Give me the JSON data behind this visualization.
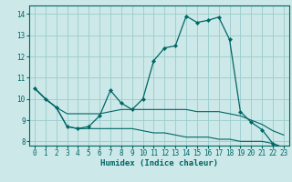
{
  "xlabel": "Humidex (Indice chaleur)",
  "bg_color": "#cce8e8",
  "grid_color": "#99cccc",
  "line_color": "#006666",
  "xlim": [
    -0.5,
    23.5
  ],
  "ylim": [
    7.8,
    14.4
  ],
  "xticks": [
    0,
    1,
    2,
    3,
    4,
    5,
    6,
    7,
    8,
    9,
    10,
    11,
    12,
    13,
    14,
    15,
    16,
    17,
    18,
    19,
    20,
    21,
    22,
    23
  ],
  "yticks": [
    8,
    9,
    10,
    11,
    12,
    13,
    14
  ],
  "series": [
    {
      "x": [
        0,
        1,
        2,
        3,
        4,
        5,
        6,
        7,
        8,
        9,
        10,
        11,
        12,
        13,
        14,
        15,
        16,
        17,
        18,
        19,
        20,
        21,
        22,
        23
      ],
      "y": [
        10.5,
        10.0,
        9.6,
        8.7,
        8.6,
        8.7,
        9.2,
        10.4,
        9.8,
        9.5,
        10.0,
        11.8,
        12.4,
        12.5,
        13.9,
        13.6,
        13.7,
        13.85,
        12.8,
        9.4,
        8.9,
        8.55,
        7.9,
        7.7
      ],
      "marker": true
    },
    {
      "x": [
        0,
        1,
        2,
        3,
        4,
        5,
        6,
        7,
        8,
        9,
        10,
        11,
        12,
        13,
        14,
        15,
        16,
        17,
        18,
        19,
        20,
        21,
        22,
        23
      ],
      "y": [
        10.5,
        10.0,
        9.6,
        9.3,
        9.3,
        9.3,
        9.3,
        9.4,
        9.5,
        9.5,
        9.5,
        9.5,
        9.5,
        9.5,
        9.5,
        9.4,
        9.4,
        9.4,
        9.3,
        9.2,
        9.0,
        8.8,
        8.5,
        8.3
      ],
      "marker": false
    },
    {
      "x": [
        0,
        1,
        2,
        3,
        4,
        5,
        6,
        7,
        8,
        9,
        10,
        11,
        12,
        13,
        14,
        15,
        16,
        17,
        18,
        19,
        20,
        21,
        22,
        23
      ],
      "y": [
        10.5,
        10.0,
        9.6,
        8.7,
        8.6,
        8.6,
        8.6,
        8.6,
        8.6,
        8.6,
        8.5,
        8.4,
        8.4,
        8.3,
        8.2,
        8.2,
        8.2,
        8.1,
        8.1,
        8.0,
        8.0,
        8.0,
        7.9,
        7.7
      ],
      "marker": false
    }
  ],
  "xlabel_fontsize": 6.5,
  "tick_fontsize": 5.5
}
